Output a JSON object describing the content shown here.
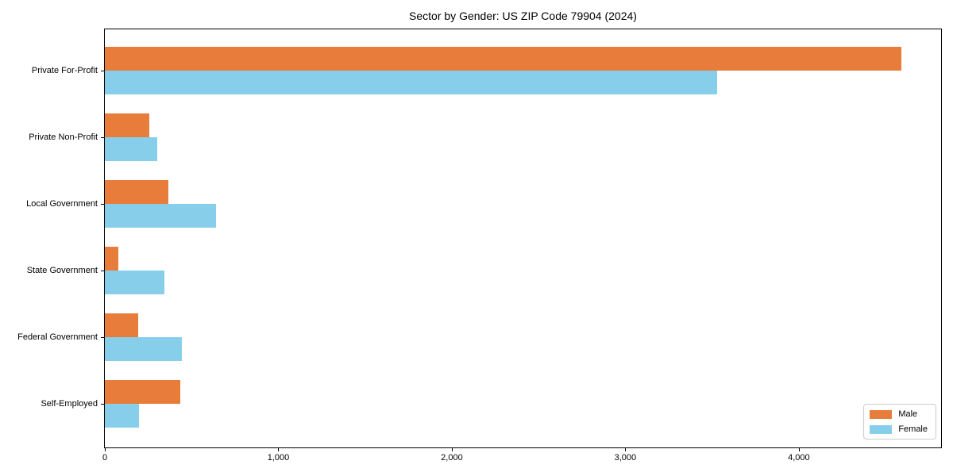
{
  "chart_data": {
    "type": "bar",
    "orientation": "horizontal",
    "title": "Sector by Gender: US ZIP Code 79904 (2024)",
    "categories": [
      "Private For-Profit",
      "Private Non-Profit",
      "Local Government",
      "State Government",
      "Federal Government",
      "Self-Employed"
    ],
    "series": [
      {
        "name": "Male",
        "color": "#E87D3B",
        "values": [
          4590,
          255,
          365,
          80,
          190,
          435
        ]
      },
      {
        "name": "Female",
        "color": "#87CEEB",
        "values": [
          3530,
          300,
          640,
          345,
          445,
          195
        ]
      }
    ],
    "xlabel": "",
    "ylabel": "",
    "xlim": [
      0,
      4820
    ],
    "xticks": [
      0,
      1000,
      2000,
      3000,
      4000
    ],
    "xtick_labels": [
      "0",
      "1,000",
      "2,000",
      "3,000",
      "4,000"
    ],
    "grid": false,
    "legend_position": "lower right",
    "spine_color": "#000000",
    "background_color": "#ffffff"
  }
}
